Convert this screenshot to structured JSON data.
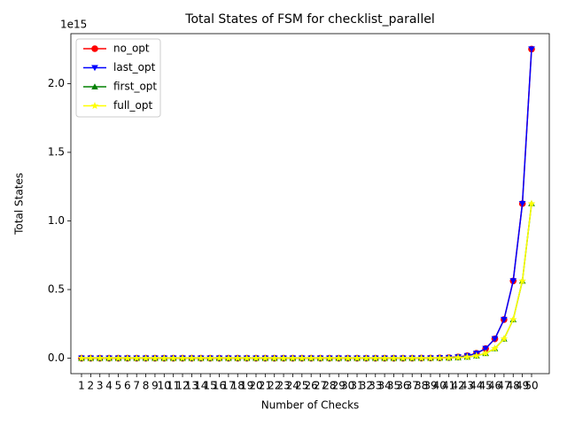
{
  "chart_data": {
    "type": "line",
    "title": "Total States of FSM for checklist_parallel",
    "x_label": "Number of Checks",
    "y_label": "Total States",
    "y_offset_text": "1e15",
    "categories": [
      "1",
      "2",
      "3",
      "4",
      "5",
      "6",
      "7",
      "8",
      "9",
      "10",
      "11",
      "12",
      "13",
      "14",
      "15",
      "16",
      "17",
      "18",
      "19",
      "20",
      "21",
      "22",
      "23",
      "24",
      "25",
      "26",
      "27",
      "28",
      "29",
      "30",
      "31",
      "32",
      "33",
      "34",
      "35",
      "36",
      "37",
      "38",
      "39",
      "40",
      "41",
      "42",
      "43",
      "44",
      "45",
      "46",
      "47",
      "48",
      "49",
      "50"
    ],
    "ylim": [
      -112589990684262,
      2364389804369510
    ],
    "yticks": [
      {
        "value": 0,
        "label": "0.0"
      },
      {
        "value": 500000000000000,
        "label": "0.5"
      },
      {
        "value": 1000000000000000,
        "label": "1.0"
      },
      {
        "value": 1500000000000000,
        "label": "1.5"
      },
      {
        "value": 2000000000000000,
        "label": "2.0"
      }
    ],
    "legend": "upper left",
    "grid": false,
    "series": [
      {
        "name": "no_opt",
        "color": "#ff0000",
        "marker": "circle",
        "values": [
          4,
          8,
          16,
          32,
          64,
          128,
          256,
          512,
          1024,
          2048,
          4096,
          8192,
          16384,
          32768,
          65536,
          131072,
          262144,
          524288,
          1048576,
          2097152,
          4194304,
          8388608,
          16777216,
          33554432,
          67108864,
          134217728,
          268435456,
          536870912,
          1073741824,
          2147483648,
          4294967296,
          8589934592,
          17179869184,
          34359738368,
          68719476736,
          137438953472,
          274877906944,
          549755813888,
          1099511627776,
          2199023255552,
          4398046511104,
          8796093022208,
          17592186044416,
          35184372088832,
          70368744177664,
          140737488355328,
          281474976710656,
          562949953421312,
          1125899906842624,
          2251799813685248
        ]
      },
      {
        "name": "last_opt",
        "color": "#0000ff",
        "marker": "triangle_down",
        "values": [
          4,
          8,
          16,
          32,
          64,
          128,
          256,
          512,
          1024,
          2048,
          4096,
          8192,
          16384,
          32768,
          65536,
          131072,
          262144,
          524288,
          1048576,
          2097152,
          4194304,
          8388608,
          16777216,
          33554432,
          67108864,
          134217728,
          268435456,
          536870912,
          1073741824,
          2147483648,
          4294967296,
          8589934592,
          17179869184,
          34359738368,
          68719476736,
          137438953472,
          274877906944,
          549755813888,
          1099511627776,
          2199023255552,
          4398046511104,
          8796093022208,
          17592186044416,
          35184372088832,
          70368744177664,
          140737488355328,
          281474976710656,
          562949953421312,
          1125899906842624,
          2251799813685248
        ]
      },
      {
        "name": "first_opt",
        "color": "#008000",
        "marker": "triangle_up",
        "values": [
          2,
          4,
          8,
          16,
          32,
          64,
          128,
          256,
          512,
          1024,
          2048,
          4096,
          8192,
          16384,
          32768,
          65536,
          131072,
          262144,
          524288,
          1048576,
          2097152,
          4194304,
          8388608,
          16777216,
          33554432,
          67108864,
          134217728,
          268435456,
          536870912,
          1073741824,
          2147483648,
          4294967296,
          8589934592,
          17179869184,
          34359738368,
          68719476736,
          137438953472,
          274877906944,
          549755813888,
          1099511627776,
          2199023255552,
          4398046511104,
          8796093022208,
          17592186044416,
          35184372088832,
          70368744177664,
          140737488355328,
          281474976710656,
          562949953421312,
          1125899906842624
        ]
      },
      {
        "name": "full_opt",
        "color": "#ffff00",
        "marker": "star",
        "values": [
          2,
          4,
          8,
          16,
          32,
          64,
          128,
          256,
          512,
          1024,
          2048,
          4096,
          8192,
          16384,
          32768,
          65536,
          131072,
          262144,
          524288,
          1048576,
          2097152,
          4194304,
          8388608,
          16777216,
          33554432,
          67108864,
          134217728,
          268435456,
          536870912,
          1073741824,
          2147483648,
          4294967296,
          8589934592,
          17179869184,
          34359738368,
          68719476736,
          137438953472,
          274877906944,
          549755813888,
          1099511627776,
          2199023255552,
          4398046511104,
          8796093022208,
          17592186044416,
          35184372088832,
          70368744177664,
          140737488355328,
          281474976710656,
          562949953421312,
          1125899906842624
        ]
      }
    ]
  }
}
